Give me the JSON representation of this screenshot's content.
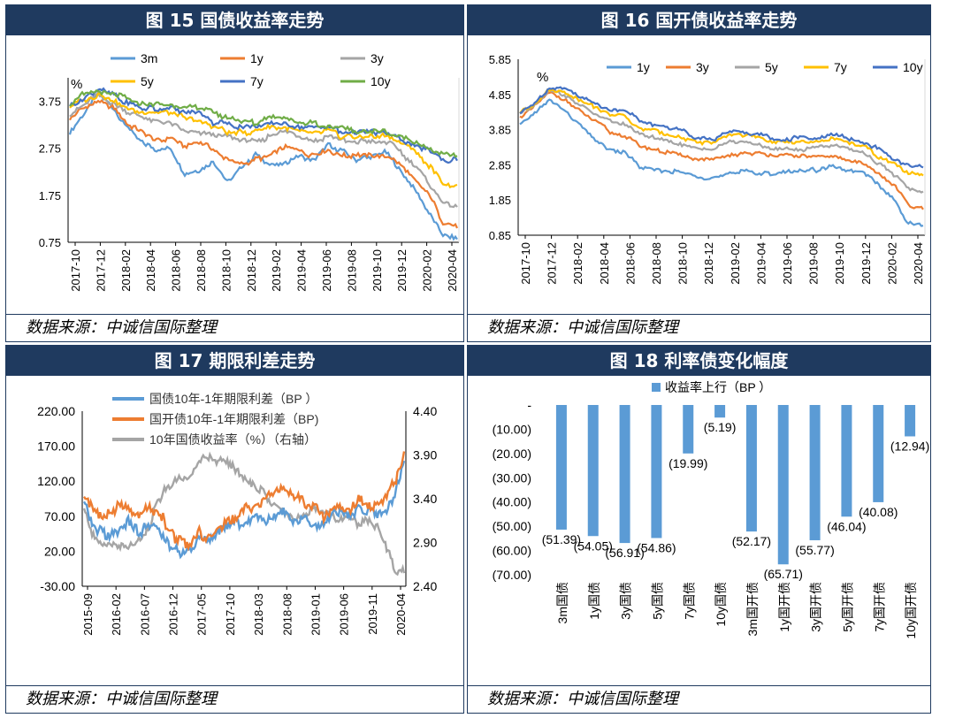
{
  "source_note": "数据来源：中诚信国际整理",
  "chart_data": [
    {
      "id": "fig15",
      "type": "line",
      "title": "图 15 国债收益率走势",
      "unit_label": "%",
      "ylim": [
        0.75,
        4.25
      ],
      "yticks": [
        0.75,
        1.75,
        2.75,
        3.75
      ],
      "x_ticks": [
        "2017-10",
        "2017-12",
        "2018-02",
        "2018-04",
        "2018-06",
        "2018-08",
        "2018-10",
        "2018-12",
        "2019-02",
        "2019-04",
        "2019-06",
        "2019-08",
        "2019-10",
        "2019-12",
        "2020-02",
        "2020-04"
      ],
      "legend_placement": "top, 3 columns",
      "series": [
        {
          "name": "3m",
          "color": "#5b9bd5",
          "values": [
            3.1,
            3.5,
            3.9,
            3.6,
            3.2,
            2.9,
            2.7,
            2.8,
            2.2,
            2.3,
            2.5,
            2.0,
            2.4,
            2.6,
            2.4,
            2.4,
            2.6,
            2.5,
            2.8,
            2.7,
            2.5,
            2.6,
            2.7,
            2.3,
            1.9,
            1.4,
            0.9
          ],
          "end": 0.8
        },
        {
          "name": "1y",
          "color": "#ed7d31",
          "values": [
            3.4,
            3.6,
            3.8,
            3.6,
            3.3,
            3.1,
            2.9,
            3.0,
            2.8,
            2.9,
            2.7,
            2.5,
            2.4,
            2.5,
            2.6,
            2.8,
            2.7,
            2.6,
            2.7,
            2.6,
            2.6,
            2.6,
            2.6,
            2.4,
            2.1,
            1.8,
            1.2
          ],
          "end": 1.1
        },
        {
          "name": "3y",
          "color": "#a5a5a5",
          "values": [
            3.5,
            3.7,
            3.9,
            3.7,
            3.5,
            3.4,
            3.3,
            3.3,
            3.1,
            3.1,
            3.0,
            3.0,
            2.9,
            2.9,
            3.0,
            3.1,
            3.0,
            2.9,
            3.0,
            2.9,
            2.9,
            2.9,
            2.9,
            2.7,
            2.4,
            2.0,
            1.6
          ],
          "end": 1.5
        },
        {
          "name": "5y",
          "color": "#ffc000",
          "values": [
            3.6,
            3.8,
            3.9,
            3.8,
            3.6,
            3.5,
            3.5,
            3.5,
            3.4,
            3.3,
            3.2,
            3.1,
            3.1,
            3.1,
            3.2,
            3.2,
            3.1,
            3.1,
            3.1,
            3.0,
            3.0,
            3.0,
            3.0,
            2.9,
            2.7,
            2.4,
            2.0
          ],
          "end": 1.9
        },
        {
          "name": "7y",
          "color": "#4472c4",
          "values": [
            3.7,
            3.8,
            4.0,
            3.9,
            3.7,
            3.6,
            3.6,
            3.6,
            3.5,
            3.5,
            3.3,
            3.3,
            3.2,
            3.2,
            3.3,
            3.3,
            3.2,
            3.2,
            3.2,
            3.1,
            3.1,
            3.1,
            3.1,
            3.0,
            2.8,
            2.7,
            2.5
          ],
          "end": 2.5
        },
        {
          "name": "10y",
          "color": "#70ad47",
          "values": [
            3.7,
            3.9,
            4.0,
            3.9,
            3.8,
            3.7,
            3.7,
            3.7,
            3.6,
            3.6,
            3.5,
            3.4,
            3.3,
            3.3,
            3.4,
            3.4,
            3.3,
            3.3,
            3.2,
            3.2,
            3.1,
            3.1,
            3.1,
            3.0,
            2.9,
            2.7,
            2.6
          ],
          "end": 2.6
        }
      ]
    },
    {
      "id": "fig16",
      "type": "line",
      "title": "图 16  国开债收益率走势",
      "unit_label": "%",
      "ylim": [
        0.85,
        5.85
      ],
      "yticks": [
        0.85,
        1.85,
        2.85,
        3.85,
        4.85,
        5.85
      ],
      "x_ticks": [
        "2017-10",
        "2017-12",
        "2018-02",
        "2018-04",
        "2018-06",
        "2018-08",
        "2018-10",
        "2018-12",
        "2019-02",
        "2019-04",
        "2019-06",
        "2019-08",
        "2019-10",
        "2019-12",
        "2020-02",
        "2020-04"
      ],
      "legend_placement": "top, single row",
      "series": [
        {
          "name": "1y",
          "color": "#5b9bd5",
          "values": [
            4.0,
            4.3,
            4.7,
            4.4,
            4.0,
            3.6,
            3.3,
            3.2,
            2.8,
            2.7,
            2.7,
            2.6,
            2.5,
            2.5,
            2.6,
            2.7,
            2.6,
            2.6,
            2.7,
            2.7,
            2.7,
            2.8,
            2.7,
            2.6,
            2.3,
            1.9,
            1.2
          ],
          "end": 1.1
        },
        {
          "name": "3y",
          "color": "#ed7d31",
          "values": [
            4.2,
            4.5,
            4.9,
            4.7,
            4.4,
            4.1,
            3.8,
            3.7,
            3.4,
            3.3,
            3.2,
            3.1,
            3.0,
            3.0,
            3.1,
            3.2,
            3.2,
            3.1,
            3.1,
            3.1,
            3.1,
            3.1,
            3.0,
            2.9,
            2.6,
            2.3,
            1.7
          ],
          "end": 1.6
        },
        {
          "name": "5y",
          "color": "#a5a5a5",
          "values": [
            4.3,
            4.6,
            5.0,
            4.8,
            4.6,
            4.3,
            4.1,
            4.0,
            3.7,
            3.6,
            3.5,
            3.4,
            3.3,
            3.3,
            3.5,
            3.5,
            3.4,
            3.3,
            3.3,
            3.3,
            3.4,
            3.4,
            3.3,
            3.2,
            2.9,
            2.6,
            2.2
          ],
          "end": 2.1
        },
        {
          "name": "7y",
          "color": "#ffc000",
          "values": [
            4.3,
            4.6,
            5.0,
            4.9,
            4.7,
            4.5,
            4.3,
            4.2,
            3.9,
            3.8,
            3.7,
            3.6,
            3.5,
            3.5,
            3.7,
            3.7,
            3.6,
            3.5,
            3.5,
            3.5,
            3.5,
            3.6,
            3.5,
            3.4,
            3.1,
            2.9,
            2.6
          ],
          "end": 2.6
        },
        {
          "name": "10y",
          "color": "#4472c4",
          "values": [
            4.3,
            4.6,
            5.0,
            5.0,
            4.8,
            4.6,
            4.4,
            4.4,
            4.1,
            4.0,
            3.9,
            3.8,
            3.6,
            3.6,
            3.8,
            3.8,
            3.7,
            3.6,
            3.6,
            3.6,
            3.6,
            3.7,
            3.6,
            3.5,
            3.3,
            3.0,
            2.8
          ],
          "end": 2.8
        }
      ]
    },
    {
      "id": "fig17",
      "type": "line",
      "title": "图 17  期限利差走势",
      "ylim_left": [
        -30,
        220
      ],
      "yticks_left": [
        -30,
        20,
        70,
        120,
        170,
        220
      ],
      "ytick_labels_left": [
        "-30.00",
        "20.00",
        "70.00",
        "120.00",
        "170.00",
        "220.00"
      ],
      "ylim_right": [
        2.4,
        4.4
      ],
      "yticks_right": [
        2.4,
        2.9,
        3.4,
        3.9,
        4.4
      ],
      "ytick_labels_right": [
        "2.40",
        "2.90",
        "3.40",
        "3.90",
        "4.40"
      ],
      "x_ticks": [
        "2015-09",
        "2016-02",
        "2016-07",
        "2016-12",
        "2017-05",
        "2017-10",
        "2018-03",
        "2018-08",
        "2019-01",
        "2019-06",
        "2019-11",
        "2020-04"
      ],
      "legend_placement": "top-center",
      "series": [
        {
          "name": "国债10年-1年期限利差（BP ）",
          "color": "#5b9bd5",
          "axis": "left",
          "values": [
            90,
            60,
            45,
            40,
            55,
            60,
            45,
            55,
            50,
            40,
            20,
            15,
            20,
            35,
            40,
            45,
            55,
            60,
            60,
            65,
            65,
            70,
            75,
            70,
            65,
            70,
            55,
            60,
            70,
            75,
            70,
            80,
            75,
            70,
            75,
            100
          ],
          "end": 155
        },
        {
          "name": "国开债10年-1年期限利差（BP)",
          "color": "#ed7d31",
          "axis": "left",
          "values": [
            100,
            80,
            70,
            75,
            85,
            80,
            75,
            80,
            70,
            65,
            40,
            35,
            30,
            45,
            40,
            50,
            60,
            65,
            80,
            85,
            90,
            100,
            110,
            105,
            95,
            90,
            80,
            70,
            75,
            80,
            85,
            90,
            80,
            85,
            95,
            120
          ],
          "end": 160
        },
        {
          "name": "10年国债收益率（%）（右轴）",
          "color": "#a5a5a5",
          "axis": "right",
          "values": [
            3.3,
            3.0,
            2.85,
            2.9,
            2.85,
            2.85,
            2.9,
            3.0,
            3.3,
            3.5,
            3.6,
            3.6,
            3.65,
            3.85,
            3.9,
            3.85,
            3.8,
            3.75,
            3.65,
            3.55,
            3.5,
            3.35,
            3.3,
            3.2,
            3.15,
            3.2,
            3.3,
            3.25,
            3.2,
            3.2,
            3.15,
            3.1,
            3.15,
            3.1,
            2.85,
            2.55
          ],
          "end": 2.6
        }
      ]
    },
    {
      "id": "fig18",
      "type": "bar",
      "title": "图 18  利率债变化幅度",
      "ylim": [
        -70,
        0
      ],
      "yticks": [
        0,
        -10,
        -20,
        -30,
        -40,
        -50,
        -60,
        -70
      ],
      "ytick_labels": [
        "-",
        "(10.00)",
        "(20.00)",
        "(30.00)",
        "(40.00)",
        "(50.00)",
        "(60.00)",
        "(70.00)"
      ],
      "legend_placement": "top-center",
      "series": [
        {
          "name": "收益率上行（BP ）",
          "color": "#5b9bd5"
        }
      ],
      "categories": [
        "3m国债",
        "1y国债",
        "3y国债",
        "5y国债",
        "7y国债",
        "10y国债",
        "3m国开债",
        "1y国开债",
        "3y国开债",
        "5y国开债",
        "7y国开债",
        "10y国开债"
      ],
      "values": [
        -51.39,
        -54.05,
        -56.91,
        -54.86,
        -19.99,
        -5.19,
        -52.17,
        -65.71,
        -55.77,
        -46.04,
        -40.08,
        -12.94
      ],
      "data_labels": [
        "(51.39)",
        "(54.05)",
        "(56.91)",
        "(54.86)",
        "(19.99)",
        "(5.19)",
        "(52.17)",
        "(65.71)",
        "(55.77)",
        "(46.04)",
        "(40.08)",
        "(12.94)"
      ]
    }
  ]
}
